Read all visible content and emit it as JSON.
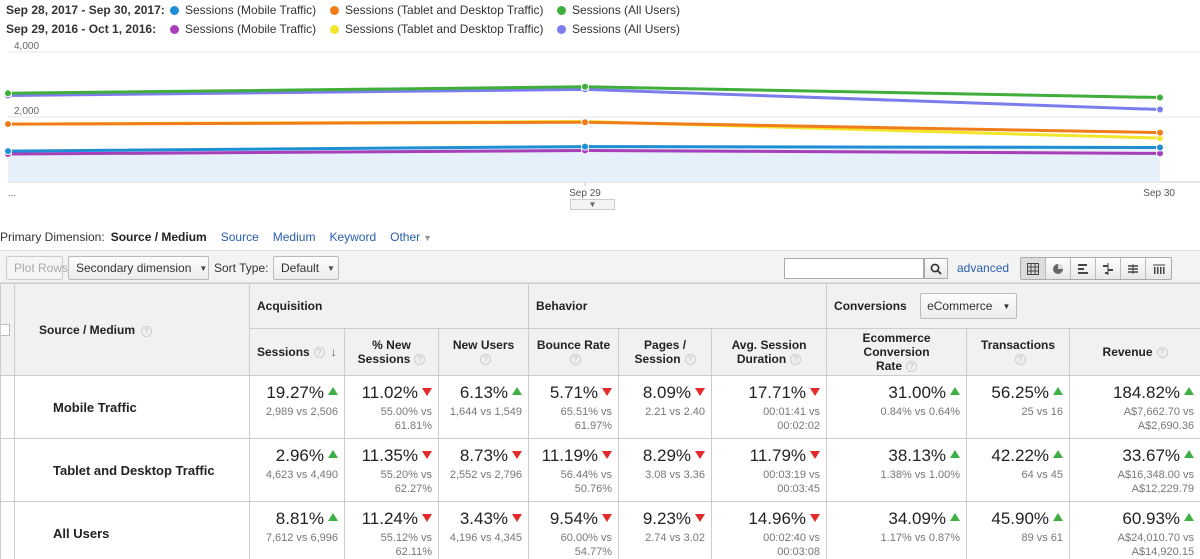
{
  "legend": {
    "current_range": "Sep 28, 2017 - Sep 30, 2017:",
    "previous_range": "Sep 29, 2016 - Oct 1, 2016:",
    "current_items": [
      {
        "label": "Sessions (Mobile Traffic)",
        "color": "#1f8fd5"
      },
      {
        "label": "Sessions (Tablet and Desktop Traffic)",
        "color": "#f07d1a"
      },
      {
        "label": "Sessions (All Users)",
        "color": "#3fae3a"
      }
    ],
    "previous_items": [
      {
        "label": "Sessions (Mobile Traffic)",
        "color": "#a63fb8"
      },
      {
        "label": "Sessions (Tablet and Desktop Traffic)",
        "color": "#f2e62a"
      },
      {
        "label": "Sessions (All Users)",
        "color": "#7b7ded"
      }
    ]
  },
  "chart_data": {
    "type": "line",
    "x": [
      "Sep 28",
      "Sep 29",
      "Sep 30"
    ],
    "x_tick_labels": [
      "...",
      "Sep 29",
      "Sep 30"
    ],
    "y_tick_labels": [
      "4,000",
      "2,000",
      "0"
    ],
    "ylim": [
      0,
      4000
    ],
    "grid": true,
    "series": [
      {
        "name": "Sessions (Mobile Traffic)",
        "color": "#1f8fd5",
        "values": [
          950,
          1090,
          1060
        ],
        "area": true
      },
      {
        "name": "Sessions (Tablet and Desktop Traffic)",
        "color": "#f07d1a",
        "values": [
          1780,
          1840,
          1520
        ]
      },
      {
        "name": "Sessions (All Users)",
        "color": "#3fae3a",
        "values": [
          2730,
          2930,
          2600
        ]
      },
      {
        "name": "Sessions (Mobile Traffic)",
        "color": "#a63fb8",
        "values": [
          860,
          970,
          880
        ]
      },
      {
        "name": "Sessions (Tablet and Desktop Traffic)",
        "color": "#f2e62a",
        "values": [
          1780,
          1860,
          1350
        ]
      },
      {
        "name": "Sessions (All Users)",
        "color": "#7b7ded",
        "values": [
          2660,
          2850,
          2230
        ]
      }
    ]
  },
  "primary_dimension": {
    "label": "Primary Dimension:",
    "active": "Source / Medium",
    "links": [
      "Source",
      "Medium",
      "Keyword"
    ],
    "other": "Other"
  },
  "toolbar": {
    "plot_rows": "Plot Rows",
    "secondary_dimension": "Secondary dimension",
    "sort_type_label": "Sort Type:",
    "sort_type_value": "Default",
    "advanced": "advanced"
  },
  "table": {
    "groups": {
      "source_medium": "Source / Medium",
      "acquisition": "Acquisition",
      "behavior": "Behavior",
      "conversions": "Conversions",
      "conversions_select": "eCommerce"
    },
    "columns": [
      {
        "line1": "Sessions",
        "line2": ""
      },
      {
        "line1": "% New",
        "line2": "Sessions"
      },
      {
        "line1": "New Users",
        "line2": ""
      },
      {
        "line1": "Bounce Rate",
        "line2": ""
      },
      {
        "line1": "Pages /",
        "line2": "Session"
      },
      {
        "line1": "Avg. Session",
        "line2": "Duration"
      },
      {
        "line1": "Ecommerce Conversion",
        "line2": "Rate"
      },
      {
        "line1": "Transactions",
        "line2": ""
      },
      {
        "line1": "Revenue",
        "line2": ""
      }
    ],
    "rows": [
      {
        "name": "Mobile Traffic",
        "cells": [
          {
            "pct": "19.27%",
            "dir": "up",
            "sub1": "2,989 vs 2,506",
            "sub2": ""
          },
          {
            "pct": "11.02%",
            "dir": "down",
            "sub1": "55.00% vs",
            "sub2": "61.81%"
          },
          {
            "pct": "6.13%",
            "dir": "up",
            "sub1": "1,644 vs 1,549",
            "sub2": ""
          },
          {
            "pct": "5.71%",
            "dir": "down",
            "sub1": "65.51% vs",
            "sub2": "61.97%"
          },
          {
            "pct": "8.09%",
            "dir": "down",
            "sub1": "2.21 vs 2.40",
            "sub2": ""
          },
          {
            "pct": "17.71%",
            "dir": "down",
            "sub1": "00:01:41 vs",
            "sub2": "00:02:02"
          },
          {
            "pct": "31.00%",
            "dir": "up",
            "sub1": "0.84% vs 0.64%",
            "sub2": ""
          },
          {
            "pct": "56.25%",
            "dir": "up",
            "sub1": "25 vs 16",
            "sub2": ""
          },
          {
            "pct": "184.82%",
            "dir": "up",
            "sub1": "A$7,662.70 vs",
            "sub2": "A$2,690.36"
          }
        ]
      },
      {
        "name": "Tablet and Desktop Traffic",
        "cells": [
          {
            "pct": "2.96%",
            "dir": "up",
            "sub1": "4,623 vs 4,490",
            "sub2": ""
          },
          {
            "pct": "11.35%",
            "dir": "down",
            "sub1": "55.20% vs",
            "sub2": "62.27%"
          },
          {
            "pct": "8.73%",
            "dir": "down",
            "sub1": "2,552 vs 2,796",
            "sub2": ""
          },
          {
            "pct": "11.19%",
            "dir": "down",
            "sub1": "56.44% vs",
            "sub2": "50.76%"
          },
          {
            "pct": "8.29%",
            "dir": "down",
            "sub1": "3.08 vs 3.36",
            "sub2": ""
          },
          {
            "pct": "11.79%",
            "dir": "down",
            "sub1": "00:03:19 vs",
            "sub2": "00:03:45"
          },
          {
            "pct": "38.13%",
            "dir": "up",
            "sub1": "1.38% vs 1.00%",
            "sub2": ""
          },
          {
            "pct": "42.22%",
            "dir": "up",
            "sub1": "64 vs 45",
            "sub2": ""
          },
          {
            "pct": "33.67%",
            "dir": "up",
            "sub1": "A$16,348.00 vs",
            "sub2": "A$12,229.79"
          }
        ]
      },
      {
        "name": "All Users",
        "cells": [
          {
            "pct": "8.81%",
            "dir": "up",
            "sub1": "7,612 vs 6,996",
            "sub2": ""
          },
          {
            "pct": "11.24%",
            "dir": "down",
            "sub1": "55.12% vs",
            "sub2": "62.11%"
          },
          {
            "pct": "3.43%",
            "dir": "down",
            "sub1": "4,196 vs 4,345",
            "sub2": ""
          },
          {
            "pct": "9.54%",
            "dir": "down",
            "sub1": "60.00% vs",
            "sub2": "54.77%"
          },
          {
            "pct": "9.23%",
            "dir": "down",
            "sub1": "2.74 vs 3.02",
            "sub2": ""
          },
          {
            "pct": "14.96%",
            "dir": "down",
            "sub1": "00:02:40 vs",
            "sub2": "00:03:08"
          },
          {
            "pct": "34.09%",
            "dir": "up",
            "sub1": "1.17% vs 0.87%",
            "sub2": ""
          },
          {
            "pct": "45.90%",
            "dir": "up",
            "sub1": "89 vs 61",
            "sub2": ""
          },
          {
            "pct": "60.93%",
            "dir": "up",
            "sub1": "A$24,010.70 vs",
            "sub2": "A$14,920.15"
          }
        ]
      }
    ]
  }
}
